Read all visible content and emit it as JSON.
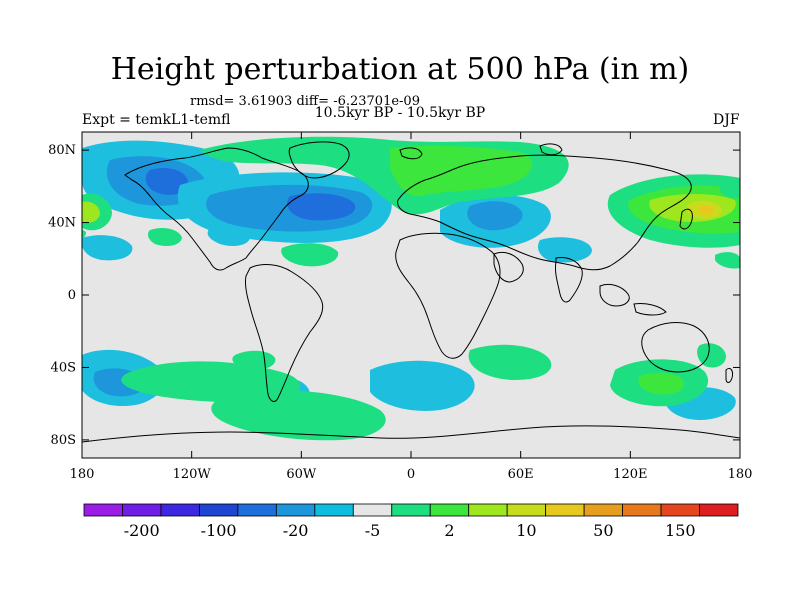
{
  "header": {
    "title": "Height perturbation at 500 hPa (in m)",
    "stats": "rmsd= 3.61903 diff= -6.23701e-09",
    "experiment": "Expt = temkL1-temfl",
    "period": "10.5kyr BP - 10.5kyr BP",
    "season": "DJF"
  },
  "map": {
    "projection": "cylindrical-equidistant",
    "lon_range": [
      -180,
      180
    ],
    "lat_range": [
      -90,
      90
    ],
    "background_color": "#e6e6e6",
    "x_tick_labels": [
      "180",
      "120W",
      "60W",
      "0",
      "60E",
      "120E",
      "180"
    ],
    "y_tick_labels": [
      "80N",
      "40N",
      "0",
      "40S",
      "80S"
    ]
  },
  "chart_data": {
    "type": "heatmap",
    "title": "Height perturbation at 500 hPa (in m)",
    "colorbar": {
      "labels": [
        "-200",
        "-100",
        "-20",
        "-5",
        "2",
        "10",
        "50",
        "150"
      ],
      "colors": [
        "#9a1ee6",
        "#6e1ee6",
        "#3c28e0",
        "#1e46d2",
        "#1e6edc",
        "#1e96dc",
        "#0fbede",
        "#e6e6e6",
        "#1ede82",
        "#3ce63c",
        "#9ee61e",
        "#c8dc1e",
        "#e6c81e",
        "#e69e1e",
        "#e6781e",
        "#e6461e",
        "#dc1e1e"
      ]
    },
    "anomaly_centers": [
      {
        "region": "North America / North Atlantic",
        "sign": "negative",
        "lon": -60,
        "lat": 50,
        "level": "-20"
      },
      {
        "region": "North Pacific (east of date line)",
        "sign": "negative",
        "lon": -130,
        "lat": 60,
        "level": "-20"
      },
      {
        "region": "Mediterranean / Central Europe",
        "sign": "negative",
        "lon": 40,
        "lat": 45,
        "level": "-5"
      },
      {
        "region": "Greenland / Arctic",
        "sign": "positive",
        "lon": 0,
        "lat": 75,
        "level": "10"
      },
      {
        "region": "North Pacific (Japan)",
        "sign": "positive",
        "lon": 160,
        "lat": 45,
        "level": "50"
      },
      {
        "region": "Southern Ocean (south of Australia)",
        "sign": "positive",
        "lon": 120,
        "lat": -50,
        "level": "10"
      },
      {
        "region": "South Pacific",
        "sign": "positive",
        "lon": -90,
        "lat": -60,
        "level": "2"
      },
      {
        "region": "South Atlantic",
        "sign": "negative",
        "lon": 10,
        "lat": -50,
        "level": "-5"
      }
    ]
  }
}
